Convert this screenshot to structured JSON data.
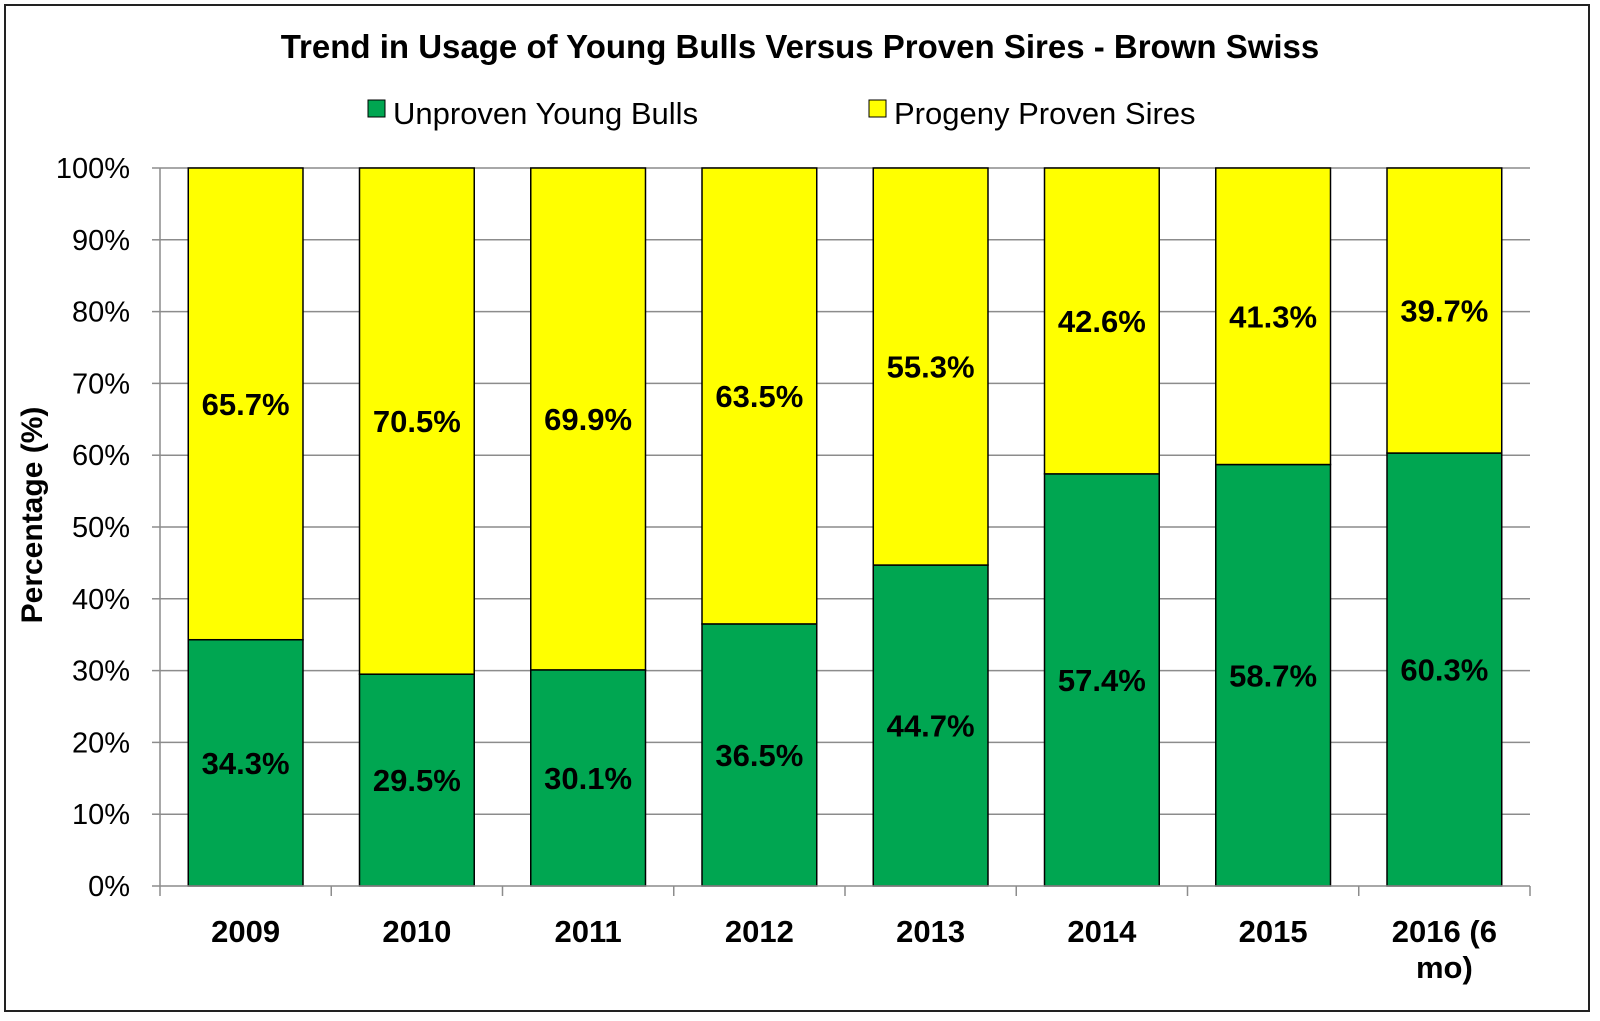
{
  "chart_data": {
    "type": "bar",
    "stacked": true,
    "percent": true,
    "title": "Trend in Usage of Young Bulls Versus Proven Sires - Brown Swiss",
    "ylabel": "Percentage (%)",
    "xlabel": "",
    "ylim": [
      0,
      100
    ],
    "y_ticks": [
      "0%",
      "10%",
      "20%",
      "30%",
      "40%",
      "50%",
      "60%",
      "70%",
      "80%",
      "90%",
      "100%"
    ],
    "grid": true,
    "legend_position": "top",
    "categories": [
      "2009",
      "2010",
      "2011",
      "2012",
      "2013",
      "2014",
      "2015",
      "2016 (6 mo)"
    ],
    "category_lines": [
      [
        "2009"
      ],
      [
        "2010"
      ],
      [
        "2011"
      ],
      [
        "2012"
      ],
      [
        "2013"
      ],
      [
        "2014"
      ],
      [
        "2015"
      ],
      [
        "2016 (6",
        "mo)"
      ]
    ],
    "series": [
      {
        "name": "Unproven Young Bulls",
        "color": "#00A651",
        "values": [
          34.3,
          29.5,
          30.1,
          36.5,
          44.7,
          57.4,
          58.7,
          60.3
        ],
        "labels": [
          "34.3%",
          "29.5%",
          "30.1%",
          "36.5%",
          "44.7%",
          "57.4%",
          "58.7%",
          "60.3%"
        ]
      },
      {
        "name": "Progeny Proven Sires",
        "color": "#FFFF00",
        "values": [
          65.7,
          70.5,
          69.9,
          63.5,
          55.3,
          42.6,
          41.3,
          39.7
        ],
        "labels": [
          "65.7%",
          "70.5%",
          "69.9%",
          "63.5%",
          "55.3%",
          "42.6%",
          "41.3%",
          "39.7%"
        ]
      }
    ]
  }
}
